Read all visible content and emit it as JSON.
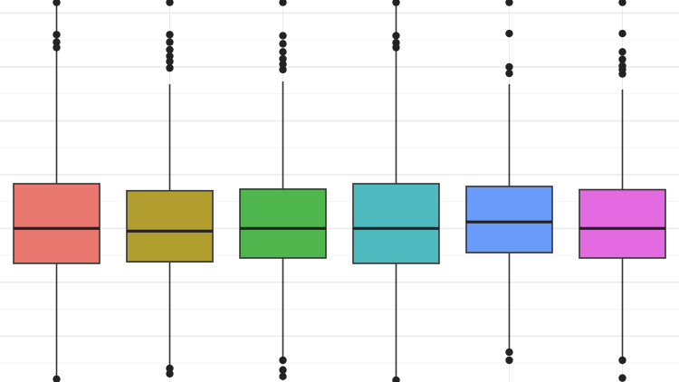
{
  "chart_data": {
    "type": "box",
    "title": "",
    "xlabel": "",
    "ylabel": "",
    "grid": true,
    "ylim": [
      -2.82,
      4.21
    ],
    "colors": [
      "#e8776f",
      "#b29d2f",
      "#4fb74d",
      "#4fb9c0",
      "#6b9bf8",
      "#e36ae0"
    ],
    "boxes": [
      {
        "q1": -0.65,
        "median": -0.0,
        "q3": 0.83,
        "whisker_low": -2.8,
        "whisker_high": 4.2,
        "outliers": [
          3.6,
          3.46,
          3.36,
          4.2,
          -2.8
        ]
      },
      {
        "q1": -0.62,
        "median": -0.05,
        "q3": 0.7,
        "whisker_low": -2.6,
        "whisker_high": 2.68,
        "outliers": [
          3.6,
          3.46,
          3.32,
          3.2,
          3.1,
          2.98,
          4.2,
          -2.6,
          -2.7
        ]
      },
      {
        "q1": -0.55,
        "median": 0.0,
        "q3": 0.73,
        "whisker_low": -2.45,
        "whisker_high": 2.73,
        "outliers": [
          3.58,
          3.43,
          3.28,
          3.15,
          3.05,
          2.95,
          4.2,
          -2.45,
          -2.63,
          -2.75
        ]
      },
      {
        "q1": -0.65,
        "median": 0.0,
        "q3": 0.83,
        "whisker_low": -2.82,
        "whisker_high": 4.2,
        "outliers": [
          3.58,
          3.45,
          3.36,
          4.2,
          -2.82
        ]
      },
      {
        "q1": -0.45,
        "median": 0.12,
        "q3": 0.78,
        "whisker_low": -2.3,
        "whisker_high": 2.68,
        "outliers": [
          3.62,
          3.0,
          2.88,
          4.2,
          -2.3,
          -2.45
        ]
      },
      {
        "q1": -0.55,
        "median": 0.0,
        "q3": 0.72,
        "whisker_low": -2.45,
        "whisker_high": 2.58,
        "outliers": [
          3.62,
          3.28,
          3.14,
          3.02,
          2.95,
          2.87,
          4.2,
          -2.45,
          -2.78
        ]
      }
    ]
  }
}
